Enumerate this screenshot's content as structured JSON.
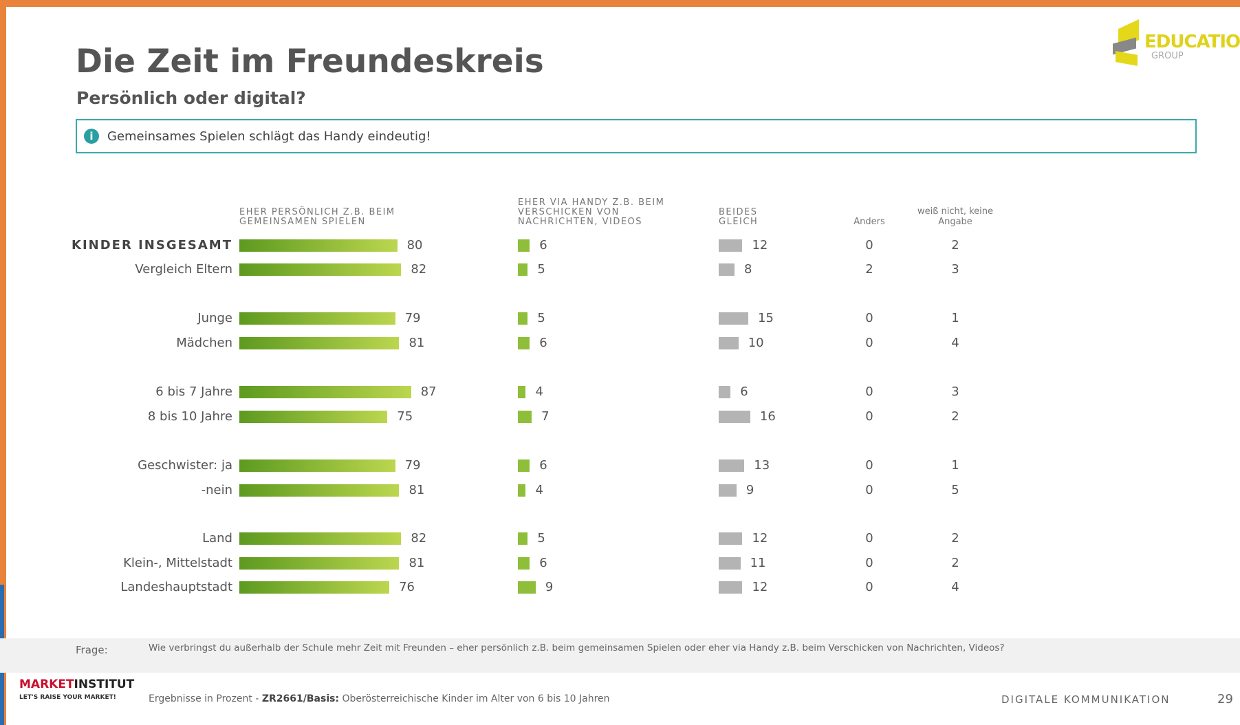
{
  "header": {
    "title": "Die Zeit im Freundeskreis",
    "subtitle": "Persönlich oder digital?",
    "note": "Gemeinsames Spielen schlägt das Handy eindeutig!"
  },
  "logo": {
    "name": "EDUCATION",
    "sub": "GROUP"
  },
  "chart_data": {
    "type": "bar",
    "categories": [
      "KINDER INSGESAMT",
      "Vergleich Eltern",
      "Junge",
      "Mädchen",
      "6 bis 7 Jahre",
      "8 bis 10 Jahre",
      "Geschwister: ja",
      "-nein",
      "Land",
      "Klein-, Mittelstadt",
      "Landeshauptstadt"
    ],
    "series": [
      {
        "name": "EHER PERSÖNLICH Z.B. BEIM GEMEINSAMEN SPIELEN",
        "color": "#7bb02a",
        "values": [
          80,
          82,
          79,
          81,
          87,
          75,
          79,
          81,
          82,
          81,
          76
        ]
      },
      {
        "name": "EHER VIA HANDY Z.B. BEIM VERSCHICKEN VON NACHRICHTEN, VIDEOS",
        "color": "#8fbf3a",
        "values": [
          6,
          5,
          5,
          6,
          4,
          7,
          6,
          4,
          5,
          6,
          9
        ]
      },
      {
        "name": "BEIDES GLEICH",
        "color": "#b4b4b4",
        "values": [
          12,
          8,
          15,
          10,
          6,
          16,
          13,
          9,
          12,
          11,
          12
        ]
      },
      {
        "name": "Anders",
        "values": [
          0,
          2,
          0,
          0,
          0,
          0,
          0,
          0,
          0,
          0,
          0
        ]
      },
      {
        "name": "weiß nicht, keine Angabe",
        "values": [
          2,
          3,
          1,
          4,
          3,
          2,
          1,
          5,
          2,
          2,
          4
        ]
      }
    ]
  },
  "footer": {
    "question_label": "Frage:",
    "question": "Wie verbringst du außerhalb der Schule mehr Zeit mit Freunden – eher persönlich z.B. beim gemeinsamen Spielen oder eher via Handy z.B. beim Verschicken von Nachrichten, Videos?",
    "note_prefix": "Ergebnisse in Prozent -",
    "note_bold": "ZR2661/Basis:",
    "note_suffix": "Oberösterreichische Kinder im Alter von 6 bis 10 Jahren",
    "brand": "MARKET",
    "brand_bold": "INSTITUT",
    "slogan": "LET'S RAISE YOUR MARKET!",
    "section": "DIGITALE KOMMUNIKATION",
    "page": "29"
  }
}
